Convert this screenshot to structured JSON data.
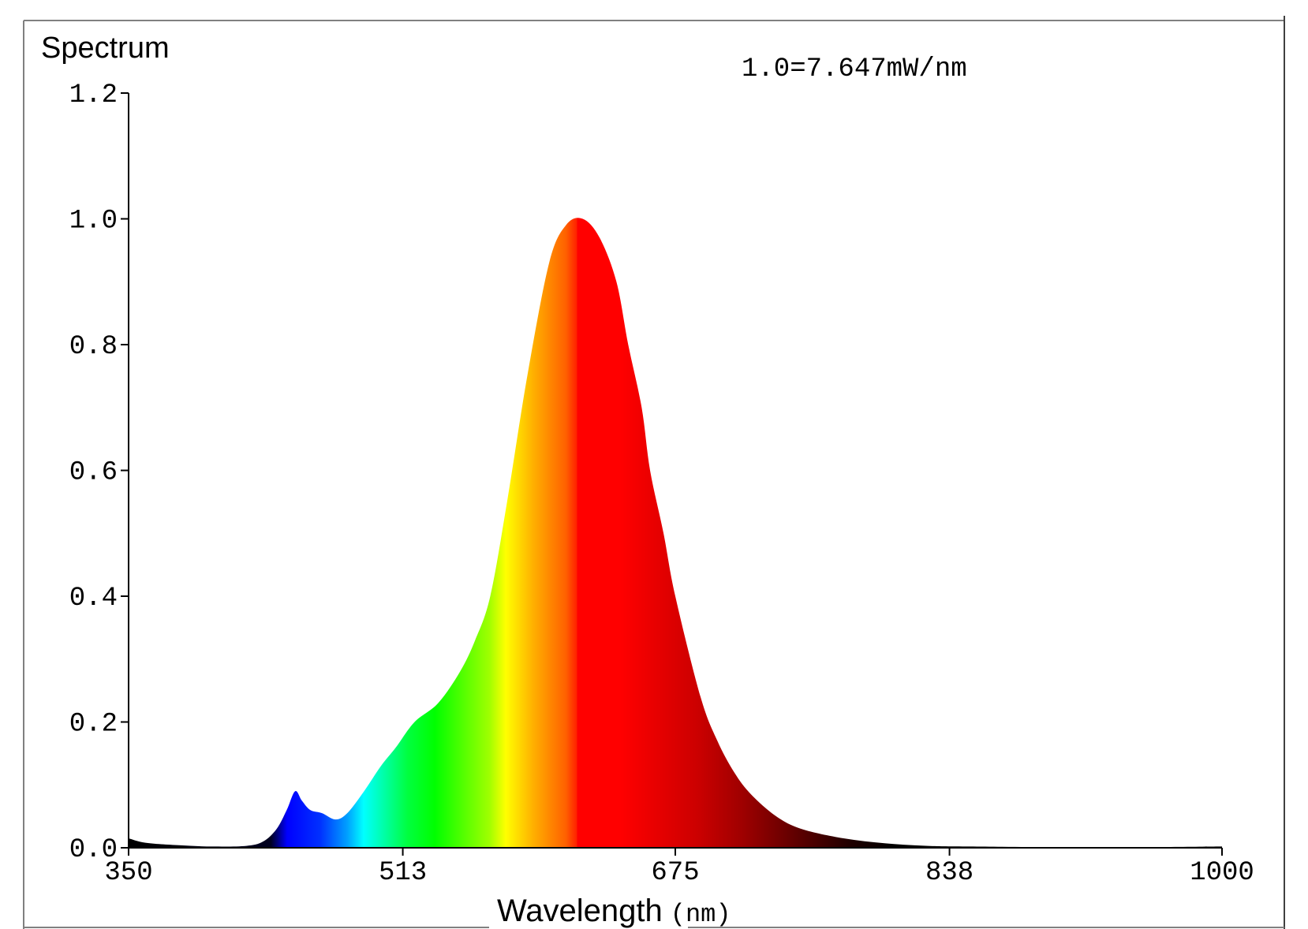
{
  "chart_data": {
    "type": "area",
    "title": "Spectrum",
    "annotation": "1.0=7.647mW/nm",
    "xlabel": "Wavelength",
    "xlabel_unit": "(nm)",
    "xlim": [
      350,
      1000
    ],
    "ylim": [
      0,
      1.2
    ],
    "x_ticks": [
      "350",
      "513",
      "675",
      "838",
      "1000"
    ],
    "y_ticks": [
      "0.0",
      "0.2",
      "0.4",
      "0.6",
      "0.8",
      "1.0",
      "1.2"
    ],
    "grid": false,
    "fill": "visible-spectrum color gradient",
    "series": [
      {
        "x": [
          350,
          360,
          380,
          400,
          420,
          430,
          438,
          444,
          449,
          453,
          458,
          465,
          473,
          480,
          490,
          500,
          509,
          520,
          534,
          547,
          556,
          565,
          575,
          587,
          600,
          610,
          620,
          630,
          640,
          647,
          655,
          660,
          668,
          675,
          690,
          700,
          710,
          720,
          735,
          750,
          775,
          800,
          825,
          850,
          900,
          950,
          1000
        ],
        "y": [
          0.015,
          0.008,
          0.004,
          0.002,
          0.003,
          0.01,
          0.03,
          0.06,
          0.09,
          0.075,
          0.06,
          0.055,
          0.045,
          0.055,
          0.09,
          0.13,
          0.16,
          0.2,
          0.23,
          0.28,
          0.33,
          0.4,
          0.55,
          0.75,
          0.93,
          0.99,
          1.0,
          0.97,
          0.9,
          0.8,
          0.7,
          0.6,
          0.5,
          0.4,
          0.24,
          0.17,
          0.12,
          0.085,
          0.05,
          0.03,
          0.015,
          0.007,
          0.003,
          0.002,
          0.001,
          0.001,
          0.002
        ]
      }
    ]
  }
}
